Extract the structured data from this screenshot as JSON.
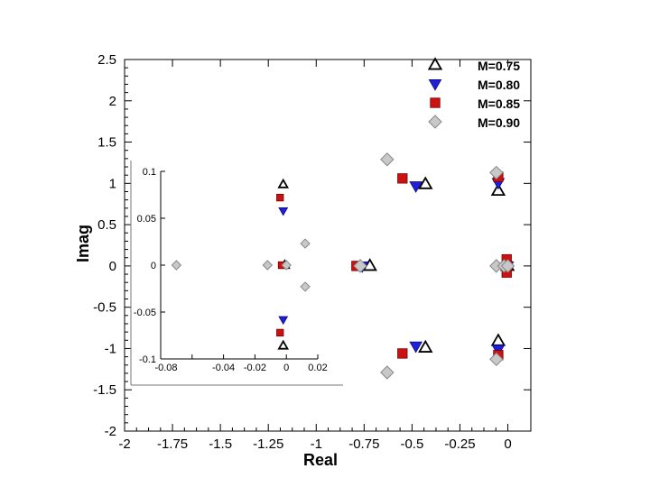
{
  "chart_data": [
    {
      "type": "scatter",
      "title": "",
      "xlabel": "Real",
      "ylabel": "Imag",
      "xlim": [
        -2,
        0.12
      ],
      "ylim": [
        -2,
        2.5
      ],
      "xticks": [
        -2,
        -1.75,
        -1.5,
        -1.25,
        -1,
        -0.75,
        -0.5,
        -0.25,
        0
      ],
      "xtick_labels": [
        "-2",
        "-1.75",
        "-1.5",
        "-1.25",
        "-1",
        "-0.75",
        "-0.5",
        "-0.25",
        "0"
      ],
      "yticks": [
        2.5,
        2,
        1.5,
        1,
        0.5,
        0,
        -0.5,
        -1,
        -1.5,
        -2
      ],
      "ytick_labels": [
        "2.5",
        "2",
        "1.5",
        "1",
        "0.5",
        "0",
        "-0.5",
        "-1",
        "-1.5",
        "-2"
      ],
      "grid": false,
      "legend_position": "top-right",
      "series": [
        {
          "name": "M=0.75",
          "marker": "triangle-up-open",
          "color": "#000000",
          "points": [
            [
              -0.43,
              0.99
            ],
            [
              -0.43,
              -0.99
            ],
            [
              -0.72,
              0.0
            ],
            [
              -0.05,
              0.91
            ],
            [
              -0.05,
              -0.91
            ],
            [
              -0.002,
              0.0
            ]
          ]
        },
        {
          "name": "M=0.80",
          "marker": "triangle-down-filled",
          "color": "#1f1fd8",
          "points": [
            [
              -0.48,
              0.97
            ],
            [
              -0.48,
              -0.97
            ],
            [
              -0.76,
              0.0
            ],
            [
              -0.05,
              1.01
            ],
            [
              -0.05,
              -1.01
            ],
            [
              -0.002,
              0.0
            ]
          ]
        },
        {
          "name": "M=0.85",
          "marker": "square-filled",
          "color": "#cc1111",
          "points": [
            [
              -0.55,
              1.06
            ],
            [
              -0.55,
              -1.06
            ],
            [
              -0.79,
              0.0
            ],
            [
              -0.05,
              1.08
            ],
            [
              -0.05,
              -1.08
            ],
            [
              -0.006,
              0.08
            ],
            [
              -0.006,
              -0.08
            ],
            [
              -0.003,
              0.0
            ]
          ]
        },
        {
          "name": "M=0.90",
          "marker": "diamond-filled",
          "color": "#c8c8c8",
          "points": [
            [
              -0.63,
              1.29
            ],
            [
              -0.63,
              -1.29
            ],
            [
              -0.77,
              0.0
            ],
            [
              -0.06,
              1.13
            ],
            [
              -0.06,
              -1.13
            ],
            [
              -0.06,
              0.0
            ],
            [
              -0.02,
              0.0
            ],
            [
              0.0,
              0.0
            ]
          ]
        }
      ]
    },
    {
      "type": "scatter",
      "title": "",
      "xlabel": "",
      "ylabel": "",
      "xlim": [
        -0.08,
        0.02
      ],
      "ylim": [
        -0.1,
        0.1
      ],
      "xticks": [
        -0.08,
        -0.04,
        -0.02,
        0,
        0.02
      ],
      "xtick_labels": [
        "-0.08",
        "-0.04",
        "-0.02",
        "0",
        "0.02"
      ],
      "xtick_positions": [
        -0.08,
        -0.06,
        -0.04,
        -0.02,
        0,
        0.02
      ],
      "yticks": [
        0.1,
        0.05,
        0,
        -0.05,
        -0.1
      ],
      "ytick_labels": [
        "0.1",
        "0.05",
        "0",
        "-0.05",
        "-0.1"
      ],
      "series": [
        {
          "name": "M=0.75",
          "marker": "triangle-up-open",
          "color": "#000000",
          "points": [
            [
              -0.002,
              0.086
            ],
            [
              -0.002,
              -0.086
            ],
            [
              -0.001,
              0.0
            ]
          ]
        },
        {
          "name": "M=0.80",
          "marker": "triangle-down-filled",
          "color": "#1f1fd8",
          "points": [
            [
              -0.002,
              0.058
            ],
            [
              -0.002,
              -0.058
            ]
          ]
        },
        {
          "name": "M=0.85",
          "marker": "square-filled",
          "color": "#cc1111",
          "points": [
            [
              -0.004,
              0.072
            ],
            [
              -0.004,
              -0.072
            ],
            [
              -0.003,
              0.0
            ]
          ]
        },
        {
          "name": "M=0.90",
          "marker": "diamond-filled",
          "color": "#c8c8c8",
          "points": [
            [
              -0.07,
              0.0
            ],
            [
              -0.012,
              0.0
            ],
            [
              0.0,
              0.0
            ],
            [
              0.012,
              0.023
            ],
            [
              0.012,
              -0.023
            ]
          ]
        }
      ]
    }
  ]
}
